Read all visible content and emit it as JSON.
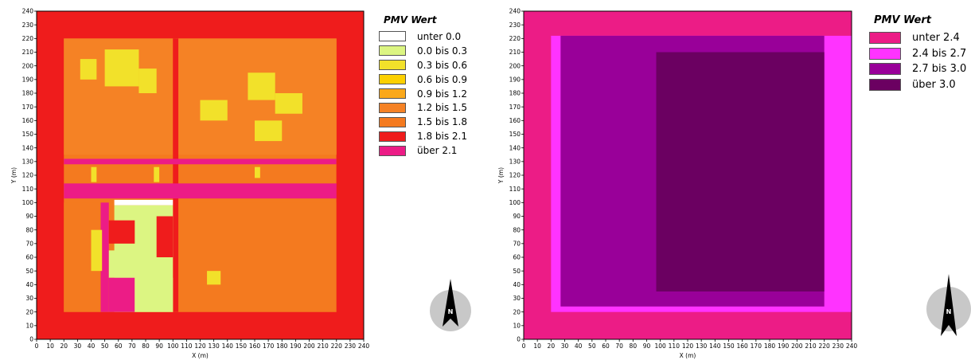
{
  "colors": {
    "cat_under_0": "#ffffff",
    "cat_0_03": "#dcf582",
    "cat_03_06": "#f2e12a",
    "cat_06_09": "#fcd000",
    "cat_09_12": "#faa81a",
    "cat_12_15": "#f58225",
    "cat_15_18": "#f47a1f",
    "cat_18_21": "#ef1c1c",
    "cat_over_21": "#ec1c86",
    "r_under_24": "#ec1c86",
    "r_24_27": "#ff33ff",
    "r_27_30": "#990099",
    "r_over_30": "#6b0061"
  },
  "icons": {
    "north_arrow": "north-arrow-icon"
  },
  "compass_letter": "N",
  "chart_data": [
    {
      "type": "heatmap",
      "title": "",
      "xlabel": "X (m)",
      "ylabel": "Y (m)",
      "xlim": [
        0,
        240
      ],
      "ylim": [
        0,
        240
      ],
      "xticks": [
        "0",
        "10",
        "20",
        "30",
        "40",
        "50",
        "60",
        "70",
        "80",
        "90",
        "100",
        "110",
        "120",
        "130",
        "140",
        "150",
        "160",
        "170",
        "180",
        "190",
        "200",
        "210",
        "220",
        "230",
        "240"
      ],
      "yticks": [
        "0",
        "10",
        "20",
        "30",
        "40",
        "50",
        "60",
        "70",
        "80",
        "90",
        "100",
        "110",
        "120",
        "130",
        "140",
        "150",
        "160",
        "170",
        "180",
        "190",
        "200",
        "210",
        "220",
        "230",
        "240"
      ],
      "legend_title": "PMV Wert",
      "legend": [
        {
          "label": "unter 0.0",
          "color": "#ffffff"
        },
        {
          "label": "0.0 bis 0.3",
          "color": "#dcf582"
        },
        {
          "label": "0.3 bis 0.6",
          "color": "#f2e12a"
        },
        {
          "label": "0.6 bis 0.9",
          "color": "#fcd000"
        },
        {
          "label": "0.9 bis 1.2",
          "color": "#faa81a"
        },
        {
          "label": "1.2 bis 1.5",
          "color": "#f58225"
        },
        {
          "label": "1.5 bis 1.8",
          "color": "#f47a1f"
        },
        {
          "label": "1.8 bis 2.1",
          "color": "#ef1c1c"
        },
        {
          "label": "über 2.1",
          "color": "#ec1c86"
        }
      ],
      "regions": [
        {
          "x": [
            0,
            240
          ],
          "y": [
            0,
            240
          ],
          "cat": "1.8 bis 2.1"
        },
        {
          "x": [
            20,
            220
          ],
          "y": [
            20,
            220
          ],
          "cat": "1.5 bis 1.8"
        },
        {
          "x": [
            20,
            100
          ],
          "y": [
            135,
            220
          ],
          "cat": "1.2 bis 1.5"
        },
        {
          "x": [
            102,
            220
          ],
          "y": [
            135,
            220
          ],
          "cat": "1.2 bis 1.5"
        },
        {
          "x": [
            20,
            220
          ],
          "y": [
            20,
            100
          ],
          "cat": "1.5 bis 1.8"
        },
        {
          "x": [
            100,
            104
          ],
          "y": [
            20,
            220
          ],
          "cat": "1.8 bis 2.1"
        },
        {
          "x": [
            20,
            220
          ],
          "y": [
            128,
            132
          ],
          "cat": "über 2.1"
        },
        {
          "x": [
            20,
            225
          ],
          "y": [
            103,
            114
          ],
          "cat": "über 2.1"
        },
        {
          "x": [
            220,
            240
          ],
          "y": [
            20,
            135
          ],
          "cat": "1.8 bis 2.1"
        },
        {
          "x": [
            47,
            53
          ],
          "y": [
            20,
            100
          ],
          "cat": "über 2.1"
        },
        {
          "x": [
            57,
            100
          ],
          "y": [
            98,
            102
          ],
          "cat": "unter 0.0"
        },
        {
          "x": [
            57,
            100
          ],
          "y": [
            20,
            98
          ],
          "cat": "0.0 bis 0.3"
        },
        {
          "x": [
            53,
            72
          ],
          "y": [
            70,
            87
          ],
          "cat": "1.8 bis 2.1"
        },
        {
          "x": [
            53,
            72
          ],
          "y": [
            45,
            65
          ],
          "cat": "0.0 bis 0.3"
        },
        {
          "x": [
            53,
            72
          ],
          "y": [
            20,
            45
          ],
          "cat": "über 2.1"
        },
        {
          "x": [
            72,
            100
          ],
          "y": [
            20,
            45
          ],
          "cat": "0.0 bis 0.3"
        },
        {
          "x": [
            88,
            100
          ],
          "y": [
            60,
            90
          ],
          "cat": "1.8 bis 2.1"
        },
        {
          "x": [
            40,
            44
          ],
          "y": [
            115,
            126
          ],
          "cat": "0.3 bis 0.6"
        },
        {
          "x": [
            86,
            90
          ],
          "y": [
            115,
            126
          ],
          "cat": "0.3 bis 0.6"
        },
        {
          "x": [
            160,
            164
          ],
          "y": [
            118,
            126
          ],
          "cat": "0.3 bis 0.6"
        },
        {
          "x": [
            32,
            44
          ],
          "y": [
            190,
            205
          ],
          "cat": "0.3 bis 0.6"
        },
        {
          "x": [
            50,
            75
          ],
          "y": [
            185,
            212
          ],
          "cat": "0.3 bis 0.6"
        },
        {
          "x": [
            75,
            88
          ],
          "y": [
            180,
            198
          ],
          "cat": "0.3 bis 0.6"
        },
        {
          "x": [
            120,
            140
          ],
          "y": [
            160,
            175
          ],
          "cat": "0.3 bis 0.6"
        },
        {
          "x": [
            155,
            175
          ],
          "y": [
            175,
            195
          ],
          "cat": "0.3 bis 0.6"
        },
        {
          "x": [
            175,
            195
          ],
          "y": [
            165,
            180
          ],
          "cat": "0.3 bis 0.6"
        },
        {
          "x": [
            160,
            180
          ],
          "y": [
            145,
            160
          ],
          "cat": "0.3 bis 0.6"
        },
        {
          "x": [
            40,
            48
          ],
          "y": [
            50,
            80
          ],
          "cat": "0.3 bis 0.6"
        },
        {
          "x": [
            125,
            135
          ],
          "y": [
            40,
            50
          ],
          "cat": "0.3 bis 0.6"
        }
      ]
    },
    {
      "type": "heatmap",
      "title": "",
      "xlabel": "X (m)",
      "ylabel": "Y (m)",
      "xlim": [
        0,
        240
      ],
      "ylim": [
        0,
        240
      ],
      "xticks": [
        "0",
        "10",
        "20",
        "30",
        "40",
        "50",
        "60",
        "70",
        "80",
        "90",
        "100",
        "110",
        "120",
        "130",
        "140",
        "150",
        "160",
        "170",
        "180",
        "190",
        "200",
        "210",
        "220",
        "230",
        "240"
      ],
      "yticks": [
        "0",
        "10",
        "20",
        "30",
        "40",
        "50",
        "60",
        "70",
        "80",
        "90",
        "100",
        "110",
        "120",
        "130",
        "140",
        "150",
        "160",
        "170",
        "180",
        "190",
        "200",
        "210",
        "220",
        "230",
        "240"
      ],
      "legend_title": "PMV Wert",
      "legend": [
        {
          "label": "unter 2.4",
          "color": "#ec1c86"
        },
        {
          "label": "2.4 bis 2.7",
          "color": "#ff33ff"
        },
        {
          "label": "2.7 bis 3.0",
          "color": "#990099"
        },
        {
          "label": "über 3.0",
          "color": "#6b0061"
        }
      ],
      "regions": [
        {
          "x": [
            0,
            240
          ],
          "y": [
            0,
            240
          ],
          "cat": "unter 2.4"
        },
        {
          "x": [
            20,
            240
          ],
          "y": [
            20,
            222
          ],
          "cat": "2.4 bis 2.7"
        },
        {
          "x": [
            27,
            220
          ],
          "y": [
            24,
            222
          ],
          "cat": "2.7 bis 3.0"
        },
        {
          "x": [
            97,
            220
          ],
          "y": [
            35,
            210
          ],
          "cat": "über 3.0"
        }
      ]
    }
  ]
}
